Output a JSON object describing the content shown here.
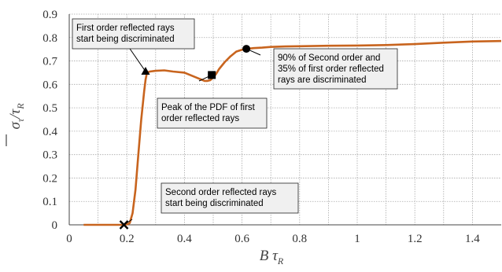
{
  "chart_data": {
    "type": "line",
    "xlabel": "B τ",
    "xlabel_sub": "R",
    "ylabel_num": "σ",
    "ylabel_num_sub": "τ",
    "ylabel_den": "τ",
    "ylabel_den_sub": "R",
    "xlim": [
      0,
      1.5
    ],
    "ylim": [
      0,
      0.9
    ],
    "x_ticks": [
      "0",
      "0.2",
      "0.4",
      "0.6",
      "0.8",
      "1",
      "1.2",
      "1.4"
    ],
    "y_ticks": [
      "0",
      "0.1",
      "0.2",
      "0.3",
      "0.4",
      "0.5",
      "0.6",
      "0.7",
      "0.8",
      "0.9"
    ],
    "grid": true,
    "line_color": "#c8641e",
    "series": [
      {
        "x": [
          0.05,
          0.1,
          0.15,
          0.19,
          0.2,
          0.205,
          0.21,
          0.22,
          0.23,
          0.24,
          0.25,
          0.26,
          0.265,
          0.27,
          0.28,
          0.3,
          0.33,
          0.36,
          0.4,
          0.43,
          0.45,
          0.47,
          0.48,
          0.49,
          0.5,
          0.51,
          0.52,
          0.54,
          0.56,
          0.58,
          0.6,
          0.62,
          0.64,
          0.67,
          0.7,
          0.75,
          0.8,
          0.9,
          1.0,
          1.1,
          1.2,
          1.3,
          1.4,
          1.5
        ],
        "y": [
          0,
          0,
          0,
          0,
          0.002,
          0.004,
          0.008,
          0.05,
          0.15,
          0.3,
          0.45,
          0.57,
          0.62,
          0.65,
          0.655,
          0.658,
          0.66,
          0.655,
          0.65,
          0.635,
          0.625,
          0.615,
          0.615,
          0.618,
          0.63,
          0.645,
          0.665,
          0.695,
          0.72,
          0.74,
          0.748,
          0.752,
          0.755,
          0.757,
          0.76,
          0.762,
          0.763,
          0.765,
          0.766,
          0.768,
          0.772,
          0.778,
          0.783,
          0.785
        ]
      }
    ],
    "markers": [
      {
        "shape": "x",
        "x": 0.19,
        "y": 0
      },
      {
        "shape": "triangle",
        "x": 0.265,
        "y": 0.655
      },
      {
        "shape": "square",
        "x": 0.495,
        "y": 0.64
      },
      {
        "shape": "circle",
        "x": 0.615,
        "y": 0.752
      }
    ],
    "annotations": [
      {
        "lines": [
          "First order reflected rays",
          "start being discriminated"
        ],
        "target_x": 0.265,
        "target_y": 0.655
      },
      {
        "lines": [
          "Peak of the PDF of first",
          "order reflected rays"
        ],
        "target_x": 0.495,
        "target_y": 0.64
      },
      {
        "lines": [
          "90% of Second order and",
          "35% of first order reflected",
          "rays are discriminated"
        ],
        "target_x": 0.615,
        "target_y": 0.752
      },
      {
        "lines": [
          "Second order reflected rays",
          "start being discriminated"
        ],
        "target_x": 0.19,
        "target_y": 0
      }
    ]
  }
}
